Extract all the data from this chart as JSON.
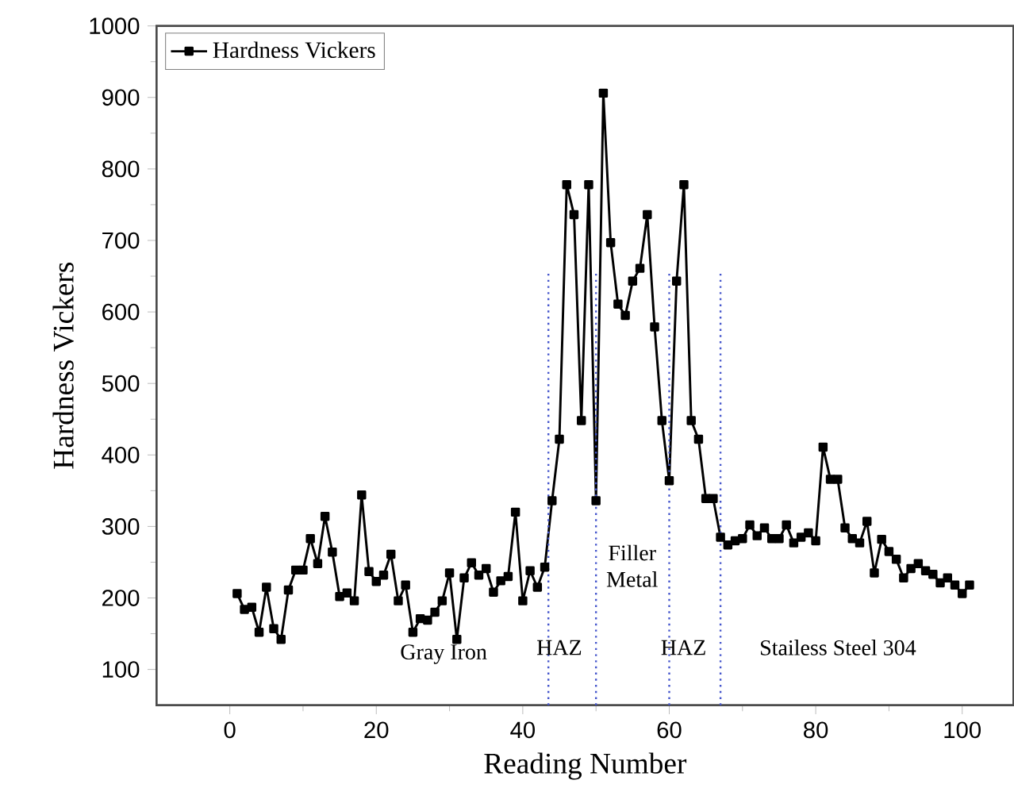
{
  "chart_data": {
    "type": "line",
    "xlabel": "Reading Number",
    "ylabel": "Hardness Vickers",
    "x": [
      1,
      2,
      3,
      4,
      5,
      6,
      7,
      8,
      9,
      10,
      11,
      12,
      13,
      14,
      15,
      16,
      17,
      18,
      19,
      20,
      21,
      22,
      23,
      24,
      25,
      26,
      27,
      28,
      29,
      30,
      31,
      32,
      33,
      34,
      35,
      36,
      37,
      38,
      39,
      40,
      41,
      42,
      43,
      44,
      45,
      46,
      47,
      48,
      49,
      50,
      51,
      52,
      53,
      54,
      55,
      56,
      57,
      58,
      59,
      60,
      61,
      62,
      63,
      64,
      65,
      66,
      67,
      68,
      69,
      70,
      71,
      72,
      73,
      74,
      75,
      76,
      77,
      78,
      79,
      80,
      81,
      82,
      83,
      84,
      85,
      86,
      87,
      88,
      89,
      90,
      91,
      92,
      93,
      94,
      95,
      96,
      97,
      98,
      99,
      100,
      101
    ],
    "series": [
      {
        "name": "Hardness Vickers",
        "color": "#000000",
        "values": [
          206,
          184,
          187,
          152,
          215,
          157,
          142,
          211,
          239,
          239,
          283,
          248,
          314,
          264,
          202,
          207,
          196,
          344,
          237,
          223,
          232,
          261,
          196,
          218,
          152,
          171,
          169,
          180,
          196,
          235,
          142,
          228,
          249,
          232,
          241,
          208,
          224,
          230,
          320,
          196,
          238,
          215,
          243,
          336,
          422,
          778,
          736,
          448,
          778,
          336,
          906,
          697,
          611,
          595,
          643,
          661,
          736,
          579,
          448,
          364,
          643,
          778,
          448,
          422,
          339,
          339,
          285,
          274,
          280,
          283,
          302,
          287,
          298,
          283,
          283,
          302,
          277,
          285,
          291,
          280,
          411,
          366,
          366,
          298,
          283,
          277,
          307,
          235,
          282,
          265,
          254,
          228,
          241,
          248,
          238,
          233,
          221,
          228,
          218,
          206,
          218
        ]
      }
    ],
    "xlim": [
      -10,
      107
    ],
    "ylim": [
      50,
      1000
    ],
    "xticks": [
      0,
      20,
      40,
      60,
      80,
      100
    ],
    "yticks": [
      100,
      200,
      300,
      400,
      500,
      600,
      700,
      800,
      900,
      1000
    ],
    "marker": "square",
    "line_style": "solid",
    "legend": "top left",
    "grid": false,
    "ref_lines": [
      {
        "axis": "x",
        "value": 43.5,
        "color": "#4455cc",
        "line_style": "dotted"
      },
      {
        "axis": "x",
        "value": 50,
        "color": "#4455cc",
        "line_style": "dotted"
      },
      {
        "axis": "x",
        "value": 60,
        "color": "#4455cc",
        "line_style": "dotted"
      },
      {
        "axis": "x",
        "value": 67,
        "color": "#4455cc",
        "line_style": "dotted"
      }
    ],
    "annotations": [
      "Gray Iron",
      "HAZ",
      "Filler Metal",
      "HAZ",
      "Stailess Steel 304"
    ]
  }
}
